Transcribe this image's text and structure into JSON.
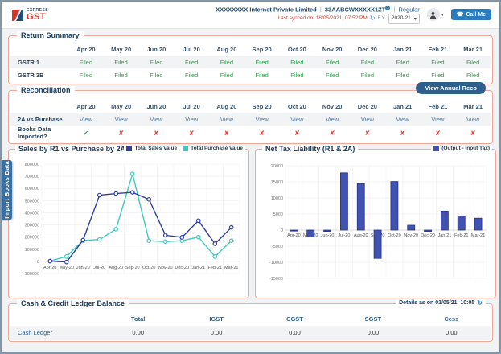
{
  "colors": {
    "accent_blue": "#2b7bbf",
    "navy": "#173a5e",
    "salmon_border": "#efa79c",
    "filed_green": "#27a844",
    "error_red": "#d64541",
    "sales_line": "#303f9f",
    "purchase_line": "#40c8bc",
    "bar_fill": "#4052b2",
    "bar_border": "#293380",
    "ribbon_blue": "#3a6fa4"
  },
  "header": {
    "logo_top": "EXPRESS",
    "logo_bottom": "GST",
    "company": "XXXXXXXX Internet Private Limited",
    "sep1": "|",
    "gstin": "33AABCWXXXXX1ZT",
    "gstin_badge": "1",
    "sep2": "|",
    "registration_type": "Regular",
    "last_synced": "Last synced on: 18/05/2021, 07:52 PM",
    "refresh_icon": "↻",
    "fy_label": "F.Y.",
    "fy_value": "2020-21",
    "fy_caret": "▾",
    "avatar_caret": "▾",
    "call_me_icon": "☎",
    "call_me_label": "Call Me"
  },
  "return_summary": {
    "title": "Return Summary",
    "months": [
      "Apr 20",
      "May 20",
      "Jun 20",
      "Jul 20",
      "Aug 20",
      "Sep 20",
      "Oct 20",
      "Nov 20",
      "Dec 20",
      "Jan 21",
      "Feb 21",
      "Mar 21"
    ],
    "rows": [
      {
        "label": "GSTR 1",
        "values": [
          "Filed",
          "Filed",
          "Filed",
          "Filed",
          "Filed",
          "Filed",
          "Filed",
          "Filed",
          "Filed",
          "Filed",
          "Filed",
          "Filed"
        ]
      },
      {
        "label": "GSTR 3B",
        "values": [
          "Filed",
          "Filed",
          "Filed",
          "Filed",
          "Filed",
          "Filed",
          "Filed",
          "Filed",
          "Filed",
          "Filed",
          "Filed",
          "Filed"
        ]
      }
    ]
  },
  "reconciliation": {
    "title": "Reconciliation",
    "button_label": "View Annual Reco",
    "months": [
      "Apr 20",
      "May 20",
      "Jun 20",
      "Jul 20",
      "Aug 20",
      "Sep 20",
      "Oct 20",
      "Nov 20",
      "Dec 20",
      "Jan 21",
      "Feb 21",
      "Mar 21"
    ],
    "view_row_label": "2A vs Purchase",
    "view_label": "View",
    "books_row_label": "Books Data Imported?",
    "books_imported": [
      true,
      false,
      false,
      false,
      false,
      false,
      false,
      false,
      false,
      false,
      false,
      false
    ],
    "check_glyph": "✔",
    "cross_glyph": "✘"
  },
  "import_books_tab": "Import Books Data",
  "chart_data": [
    {
      "type": "line",
      "title": "Sales by R1 vs Purchase by 2A",
      "categories": [
        "Apr-20",
        "May-20",
        "Jun-20",
        "Jul-20",
        "Aug-20",
        "Sep-20",
        "Oct-20",
        "Nov-20",
        "Dec-20",
        "Jan-21",
        "Feb-21",
        "Mar-21"
      ],
      "series": [
        {
          "name": "Total Sales Value",
          "color": "#303f9f",
          "values": [
            2000,
            -5000,
            175000,
            545000,
            558000,
            568000,
            510000,
            215000,
            198000,
            335000,
            145000,
            280000
          ]
        },
        {
          "name": "Total Purchase Value",
          "color": "#40c8bc",
          "values": [
            3000,
            40000,
            172000,
            180000,
            265000,
            720000,
            170000,
            163000,
            170000,
            200000,
            40000,
            170000
          ]
        }
      ],
      "ylim": [
        -100000,
        800000
      ],
      "ytick": 100000,
      "grid": true,
      "legend_position": "top-right"
    },
    {
      "type": "bar",
      "title": "Net Tax Liability (R1 & 2A)",
      "legend": "(Output - Input Tax)",
      "categories": [
        "Apr-20",
        "May-20",
        "Jun-20",
        "Jul-20",
        "Aug-20",
        "Sep-20",
        "Oct-20",
        "Nov-20",
        "Dec-20",
        "Jan-21",
        "Feb-21",
        "Mar-21"
      ],
      "values": [
        -300,
        -2100,
        -400,
        17800,
        14400,
        -8800,
        15100,
        1500,
        -400,
        5900,
        4400,
        3700
      ],
      "ylim": [
        -15000,
        20000
      ],
      "ytick": 5000,
      "grid": true,
      "color": "#4052b2",
      "border": "#293380",
      "legend_position": "top-right"
    }
  ],
  "ledger": {
    "title": "Cash & Credit Ledger Balance",
    "details": "Details as on 01/05/21, 10:05",
    "refresh_icon": "↻",
    "columns": [
      "Total",
      "IGST",
      "CGST",
      "SGST",
      "Cess"
    ],
    "rows": [
      {
        "label": "Cash Ledger",
        "values": [
          "0.00",
          "0.00",
          "0.00",
          "0.00",
          "0.00"
        ]
      }
    ]
  }
}
